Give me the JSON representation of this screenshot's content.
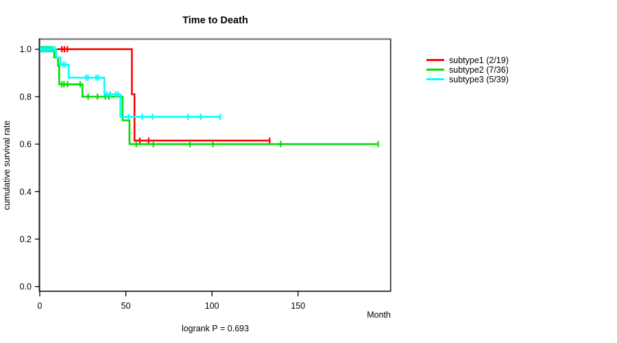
{
  "title": "Time to Death",
  "footnote": "logrank P = 0.693",
  "axes": {
    "x": {
      "label": "Month",
      "ticks": [
        0,
        50,
        100,
        150
      ],
      "range": [
        0,
        204
      ]
    },
    "y": {
      "label": "cumulative survival rate",
      "ticks": [
        {
          "label": "1.0",
          "v": 1.0
        },
        {
          "label": "0.8",
          "v": 0.8
        },
        {
          "label": "0.6",
          "v": 0.6
        },
        {
          "label": "0.4",
          "v": 0.4
        },
        {
          "label": "0.2",
          "v": 0.2
        },
        {
          "label": "0.0",
          "v": 0.0
        }
      ],
      "range": [
        0,
        1
      ]
    }
  },
  "chart_data": {
    "type": "line",
    "subtype": "kaplan-meier-step",
    "title": "Time to Death",
    "xlabel": "Month",
    "ylabel": "cumulative survival rate",
    "xlim": [
      0,
      204
    ],
    "ylim": [
      0,
      1.04
    ],
    "legend_position": "right-outside",
    "grid": false,
    "series": [
      {
        "name": "subtype1",
        "label": "subtype1 (2/19)",
        "color": "#ff0000",
        "events": "2/19",
        "start": [
          0,
          1.0
        ],
        "steps": [
          [
            53.5,
            0.81
          ],
          [
            55.0,
            0.615
          ]
        ],
        "end_t": 134,
        "censors": [
          [
            0.4,
            1.0
          ],
          [
            1.6,
            1.0
          ],
          [
            2.8,
            1.0
          ],
          [
            4.0,
            1.0
          ],
          [
            5.2,
            1.0
          ],
          [
            12.8,
            1.0
          ],
          [
            14.3,
            1.0
          ],
          [
            16.0,
            1.0
          ],
          [
            58.1,
            0.615
          ],
          [
            63.2,
            0.615
          ],
          [
            133.5,
            0.615
          ]
        ]
      },
      {
        "name": "subtype2",
        "label": "subtype2 (7/36)",
        "color": "#00dd00",
        "events": "7/36",
        "start": [
          0,
          1.0
        ],
        "steps": [
          [
            8.4,
            0.965
          ],
          [
            10.6,
            0.93
          ],
          [
            11.3,
            0.852
          ],
          [
            24.8,
            0.8
          ],
          [
            48.1,
            0.7
          ],
          [
            52.1,
            0.6
          ]
        ],
        "end_t": 196.5,
        "censors": [
          [
            1.0,
            1.0
          ],
          [
            2.2,
            1.0
          ],
          [
            3.4,
            1.0
          ],
          [
            4.6,
            1.0
          ],
          [
            5.8,
            1.0
          ],
          [
            7.0,
            1.0
          ],
          [
            12.8,
            0.852
          ],
          [
            14.1,
            0.852
          ],
          [
            16.1,
            0.852
          ],
          [
            23.5,
            0.852
          ],
          [
            28.1,
            0.8
          ],
          [
            33.5,
            0.8
          ],
          [
            38.1,
            0.8
          ],
          [
            40.1,
            0.8
          ],
          [
            46.9,
            0.8
          ],
          [
            56.0,
            0.6
          ],
          [
            66.0,
            0.6
          ],
          [
            87.2,
            0.6
          ],
          [
            100.5,
            0.6
          ],
          [
            139.9,
            0.6
          ],
          [
            196.5,
            0.6
          ]
        ]
      },
      {
        "name": "subtype3",
        "label": "subtype3 (5/39)",
        "color": "#00ffff",
        "events": "5/39",
        "start": [
          0,
          1.0
        ],
        "steps": [
          [
            9.5,
            0.965
          ],
          [
            12.0,
            0.935
          ],
          [
            16.8,
            0.88
          ],
          [
            37.5,
            0.81
          ],
          [
            46.8,
            0.715
          ]
        ],
        "end_t": 104.8,
        "censors": [
          [
            0.6,
            1.0
          ],
          [
            1.8,
            1.0
          ],
          [
            3.0,
            1.0
          ],
          [
            4.2,
            1.0
          ],
          [
            5.4,
            1.0
          ],
          [
            6.6,
            1.0
          ],
          [
            7.8,
            1.0
          ],
          [
            9.0,
            1.0
          ],
          [
            13.6,
            0.935
          ],
          [
            14.8,
            0.935
          ],
          [
            26.8,
            0.88
          ],
          [
            28.0,
            0.88
          ],
          [
            32.8,
            0.88
          ],
          [
            34.0,
            0.88
          ],
          [
            38.8,
            0.81
          ],
          [
            40.8,
            0.81
          ],
          [
            44.1,
            0.81
          ],
          [
            45.5,
            0.81
          ],
          [
            51.5,
            0.715
          ],
          [
            59.5,
            0.715
          ],
          [
            65.5,
            0.715
          ],
          [
            86.1,
            0.715
          ],
          [
            93.5,
            0.715
          ],
          [
            104.8,
            0.715
          ]
        ]
      }
    ]
  }
}
